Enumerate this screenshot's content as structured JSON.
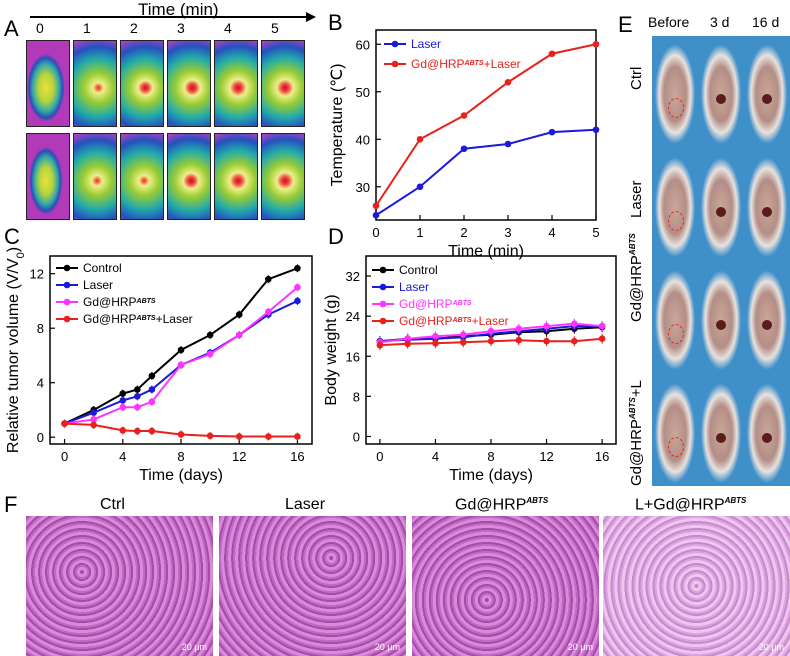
{
  "figure": {
    "panel_labels": {
      "a": "A",
      "b": "B",
      "c": "C",
      "d": "D",
      "e": "E",
      "f": "F"
    },
    "panel_a": {
      "axis_title": "Time (min)",
      "times": [
        "0",
        "1",
        "2",
        "3",
        "4",
        "5"
      ]
    },
    "panel_e": {
      "columns": [
        "Before",
        "3 d",
        "16 d"
      ],
      "rows": [
        "Ctrl",
        "Laser",
        "Gd@HRP",
        "+L  Gd@HRP"
      ],
      "row_sup": [
        "",
        "",
        "ABTS",
        "ABTS"
      ]
    },
    "panel_f": {
      "titles": [
        "Ctrl",
        "Laser",
        "Gd@HRP",
        "L+Gd@HRP"
      ],
      "title_sup": [
        "",
        "",
        "ABTS",
        "ABTS"
      ],
      "scale": "20 μm"
    }
  },
  "colors": {
    "black": "#000000",
    "blue": "#1a1adb",
    "magenta": "#ff33ff",
    "red": "#e8211c"
  },
  "chart_data": [
    {
      "type": "line",
      "panel": "B",
      "xlabel": "Time (min)",
      "ylabel": "Temperature (℃)",
      "x": [
        0,
        1,
        2,
        3,
        4,
        5
      ],
      "xlim": [
        0,
        5
      ],
      "ylim": [
        23,
        63
      ],
      "yticks": [
        30,
        40,
        50,
        60
      ],
      "series": [
        {
          "name": "Laser",
          "name_sup": "",
          "values": [
            24,
            30,
            38,
            39,
            41.5,
            42
          ]
        },
        {
          "name": "Gd@HRP",
          "name_sup": "ABTS",
          "name_suffix": "+Laser",
          "values": [
            26,
            40,
            45,
            52,
            58,
            60
          ]
        }
      ],
      "legend": "top-left"
    },
    {
      "type": "line",
      "panel": "C",
      "xlabel": "Time (days)",
      "ylabel": "Relative tumor volume (V/V0)",
      "ylabel_main": "Relative tumor volume (V/V",
      "ylabel_sub": "0",
      "ylabel_end": ")",
      "x": [
        0,
        2,
        4,
        5,
        6,
        8,
        10,
        12,
        14,
        16
      ],
      "xticks": [
        0,
        4,
        8,
        12,
        16
      ],
      "xlim": [
        -1,
        17
      ],
      "ylim": [
        -0.5,
        13.3
      ],
      "yticks": [
        0,
        4,
        8,
        12
      ],
      "series": [
        {
          "name": "Control",
          "name_sup": "",
          "name_suffix": "",
          "values": [
            1,
            2,
            3.2,
            3.5,
            4.5,
            6.4,
            7.5,
            9,
            11.6,
            12.4
          ]
        },
        {
          "name": "Laser",
          "name_sup": "",
          "name_suffix": "",
          "values": [
            1,
            1.8,
            2.7,
            3,
            3.5,
            5.3,
            6.2,
            7.5,
            9,
            10
          ]
        },
        {
          "name": "Gd@HRP",
          "name_sup": "ABTS",
          "name_suffix": "",
          "values": [
            1,
            1.3,
            2.2,
            2.2,
            2.6,
            5.3,
            6.1,
            7.5,
            9.2,
            11
          ]
        },
        {
          "name": "Gd@HRP",
          "name_sup": "ABTS",
          "name_suffix": "+Laser",
          "values": [
            1,
            0.9,
            0.5,
            0.45,
            0.45,
            0.2,
            0.1,
            0.05,
            0.05,
            0.05
          ]
        }
      ],
      "legend": "top-left"
    },
    {
      "type": "line",
      "panel": "D",
      "xlabel": "Time (days)",
      "ylabel": "Body weight (g)",
      "x": [
        0,
        2,
        4,
        6,
        8,
        10,
        12,
        14,
        16
      ],
      "xticks": [
        0,
        4,
        8,
        12,
        16
      ],
      "xlim": [
        -1,
        17
      ],
      "ylim": [
        -1.5,
        36
      ],
      "yticks": [
        0,
        8,
        16,
        24,
        32
      ],
      "series": [
        {
          "name": "Control",
          "name_sup": "",
          "name_suffix": "",
          "values": [
            19,
            19.5,
            19.5,
            20,
            20.3,
            20.8,
            21,
            21.5,
            21.8
          ]
        },
        {
          "name": "Laser",
          "name_sup": "",
          "name_suffix": "",
          "values": [
            19,
            19.3,
            19.5,
            19.8,
            20.5,
            21,
            21.5,
            22,
            22
          ]
        },
        {
          "name": "Gd@HRP",
          "name_sup": "ABTS",
          "name_suffix": "",
          "values": [
            18.8,
            19.5,
            20,
            20.3,
            21,
            21.5,
            22,
            22.5,
            22
          ]
        },
        {
          "name": "Gd@HRP",
          "name_sup": "ABTS",
          "name_suffix": "+Laser",
          "values": [
            18.2,
            18.5,
            18.6,
            18.8,
            19,
            19.2,
            19,
            19,
            19.5
          ]
        }
      ],
      "legend": "top-left"
    }
  ]
}
